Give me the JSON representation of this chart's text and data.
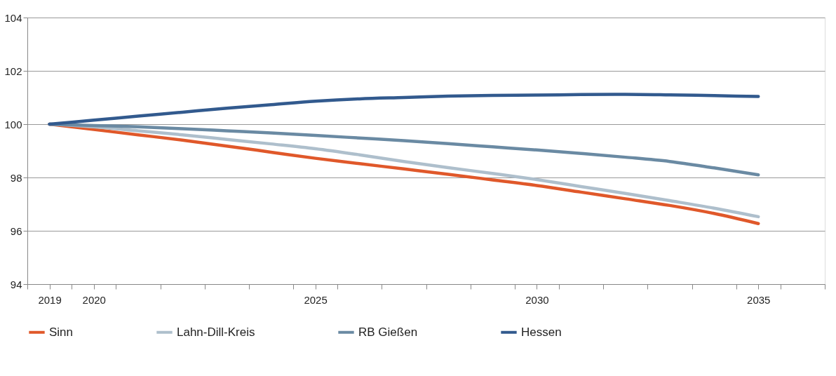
{
  "chart_data": {
    "type": "line",
    "x": [
      2019,
      2020,
      2021,
      2022,
      2023,
      2024,
      2025,
      2026,
      2027,
      2028,
      2029,
      2030,
      2031,
      2032,
      2033,
      2034,
      2035
    ],
    "series": [
      {
        "name": "Sinn",
        "color": "#e0582a",
        "values": [
          100,
          99.8,
          99.6,
          99.4,
          99.18,
          98.95,
          98.72,
          98.52,
          98.32,
          98.12,
          97.91,
          97.7,
          97.45,
          97.2,
          96.95,
          96.65,
          96.27
        ]
      },
      {
        "name": "Lahn-Dill-Kreis",
        "color": "#aebfcc",
        "values": [
          100,
          99.9,
          99.75,
          99.6,
          99.43,
          99.26,
          99.08,
          98.85,
          98.6,
          98.37,
          98.15,
          97.92,
          97.66,
          97.4,
          97.13,
          96.85,
          96.53
        ]
      },
      {
        "name": "RB Gießen",
        "color": "#6a8aa3",
        "values": [
          100,
          99.95,
          99.9,
          99.83,
          99.75,
          99.67,
          99.58,
          99.48,
          99.38,
          99.27,
          99.15,
          99.03,
          98.9,
          98.76,
          98.6,
          98.36,
          98.1
        ]
      },
      {
        "name": "Hessen",
        "color": "#325a8e",
        "values": [
          100,
          100.15,
          100.3,
          100.45,
          100.6,
          100.73,
          100.86,
          100.95,
          101.0,
          101.05,
          101.08,
          101.09,
          101.11,
          101.12,
          101.1,
          101.07,
          101.04
        ]
      }
    ],
    "xlim": [
      2018.5,
      2036.5
    ],
    "xticks": [
      {
        "value": 2018.5,
        "label": null
      },
      2019,
      {
        "value": 2019.5,
        "label": null
      },
      2020,
      {
        "value": 2020.5,
        "label": null
      },
      {
        "value": 2021.5,
        "label": null
      },
      {
        "value": 2022.5,
        "label": null
      },
      {
        "value": 2023.5,
        "label": null
      },
      {
        "value": 2024.5,
        "label": null
      },
      2025,
      {
        "value": 2025.5,
        "label": null
      },
      {
        "value": 2026.5,
        "label": null
      },
      {
        "value": 2027.5,
        "label": null
      },
      {
        "value": 2028.5,
        "label": null
      },
      {
        "value": 2029.5,
        "label": null
      },
      2030,
      {
        "value": 2030.5,
        "label": null
      },
      {
        "value": 2031.5,
        "label": null
      },
      {
        "value": 2032.5,
        "label": null
      },
      {
        "value": 2033.5,
        "label": null
      },
      {
        "value": 2034.5,
        "label": null
      },
      2035,
      {
        "value": 2035.5,
        "label": null
      },
      {
        "value": 2036.5,
        "label": null
      }
    ],
    "ylim": [
      94,
      104
    ],
    "yticks": [
      94,
      96,
      98,
      100,
      102,
      104
    ],
    "grid": "y",
    "legend": "bottom",
    "marker": "none",
    "line_style": "solid"
  }
}
